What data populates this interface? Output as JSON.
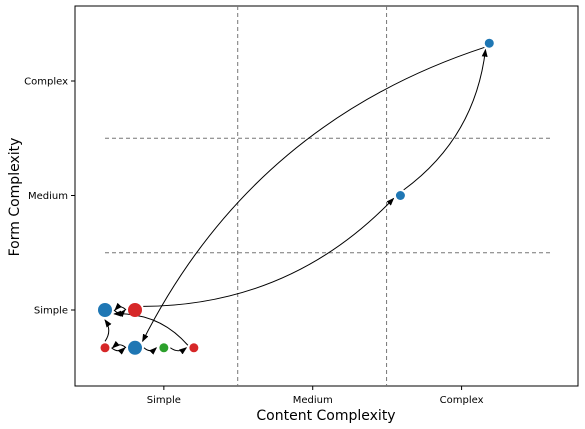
{
  "chart_data": {
    "type": "scatter",
    "title": "",
    "xlabel": "Content Complexity",
    "ylabel": "Form Complexity",
    "x_ticks": [
      "Simple",
      "Medium",
      "Complex"
    ],
    "y_ticks": [
      "Simple",
      "Medium",
      "Complex"
    ],
    "xlim": [
      -0.3,
      3.9
    ],
    "ylim": [
      -0.6,
      2.65
    ],
    "grid": "dashed quadrant lines",
    "points": [
      {
        "id": "p0",
        "x": 0.0,
        "y": 0.0,
        "color": "#1f77b4",
        "size": "large"
      },
      {
        "id": "p1",
        "x": 0.26,
        "y": 0.0,
        "color": "#d62728",
        "size": "large"
      },
      {
        "id": "p2",
        "x": 0.0,
        "y": -0.33,
        "color": "#d62728",
        "size": "small"
      },
      {
        "id": "p3",
        "x": 0.26,
        "y": -0.33,
        "color": "#1f77b4",
        "size": "large"
      },
      {
        "id": "p4",
        "x": 0.51,
        "y": -0.33,
        "color": "#2ca02c",
        "size": "small"
      },
      {
        "id": "p5",
        "x": 0.77,
        "y": -0.33,
        "color": "#d62728",
        "size": "small"
      },
      {
        "id": "p6",
        "x": 2.56,
        "y": 1.0,
        "color": "#1f77b4",
        "size": "small"
      },
      {
        "id": "p7",
        "x": 3.33,
        "y": 2.33,
        "color": "#1f77b4",
        "size": "small"
      }
    ],
    "arrows": [
      {
        "from": "p1",
        "to": "p6",
        "curve": 0.2
      },
      {
        "from": "p6",
        "to": "p7",
        "curve": 0.2
      },
      {
        "from": "p7",
        "to": "p3",
        "curve": 0.2
      },
      {
        "from": "p2",
        "to": "p0",
        "curve": 0.2
      },
      {
        "from": "p0",
        "to": "p1",
        "curve": 0.2
      },
      {
        "from": "p1",
        "to": "p0",
        "curve": 0.2
      },
      {
        "from": "p3",
        "to": "p2",
        "curve": 0.2
      },
      {
        "from": "p2",
        "to": "p3",
        "curve": 0.2
      },
      {
        "from": "p3",
        "to": "p4",
        "curve": 0.2
      },
      {
        "from": "p4",
        "to": "p5",
        "curve": 0.2
      },
      {
        "from": "p5",
        "to": "p0",
        "curve": 0.2
      }
    ]
  }
}
